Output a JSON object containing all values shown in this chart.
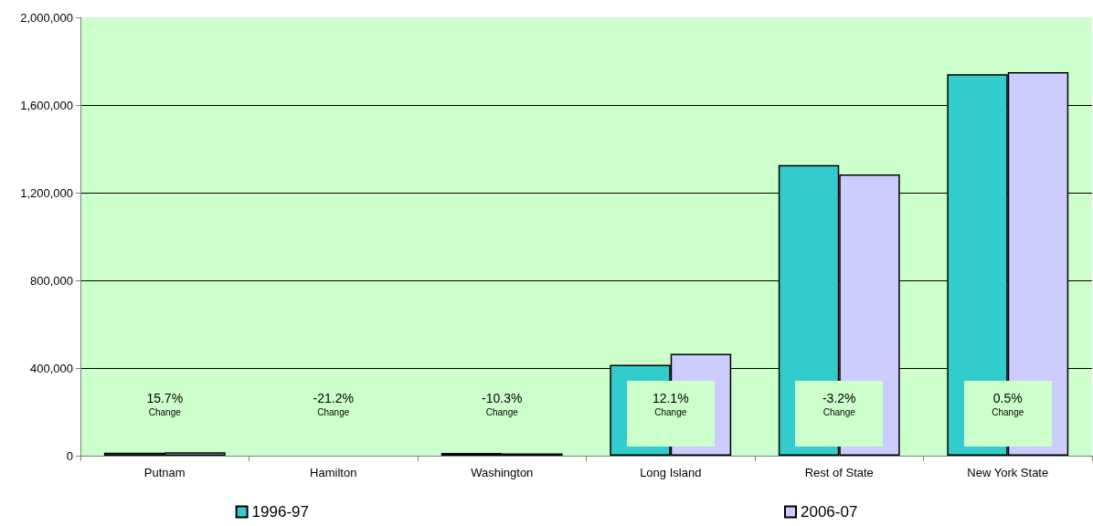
{
  "chart_data": {
    "type": "bar",
    "categories": [
      "Putnam",
      "Hamilton",
      "Washington",
      "Long Island",
      "Rest of State",
      "New York State"
    ],
    "series": [
      {
        "name": "1996-97",
        "color": "#33cccc",
        "values": [
          14000,
          0,
          12000,
          415000,
          1326000,
          1741000
        ]
      },
      {
        "name": "2006-07",
        "color": "#ccccff",
        "values": [
          16000,
          0,
          10000,
          465000,
          1283000,
          1750000
        ]
      }
    ],
    "ylim": [
      0,
      2000000
    ],
    "yticks": [
      0,
      {
        "value": 400000,
        "label": "400,000"
      },
      {
        "value": 800000,
        "label": "800,000"
      },
      {
        "value": 1200000,
        "label": "1,200,000"
      },
      {
        "value": 1600000,
        "label": "1,600,000"
      },
      {
        "value": 2000000,
        "label": "2,000,000"
      }
    ],
    "annotations": [
      "15.7%\nChange",
      "-21.2%\nChange",
      "-10.3%\nChange",
      "12.1%\nChange",
      "-3.2%\nChange",
      "0.5%\nChange"
    ],
    "grid": "y",
    "legend": "bottom"
  }
}
